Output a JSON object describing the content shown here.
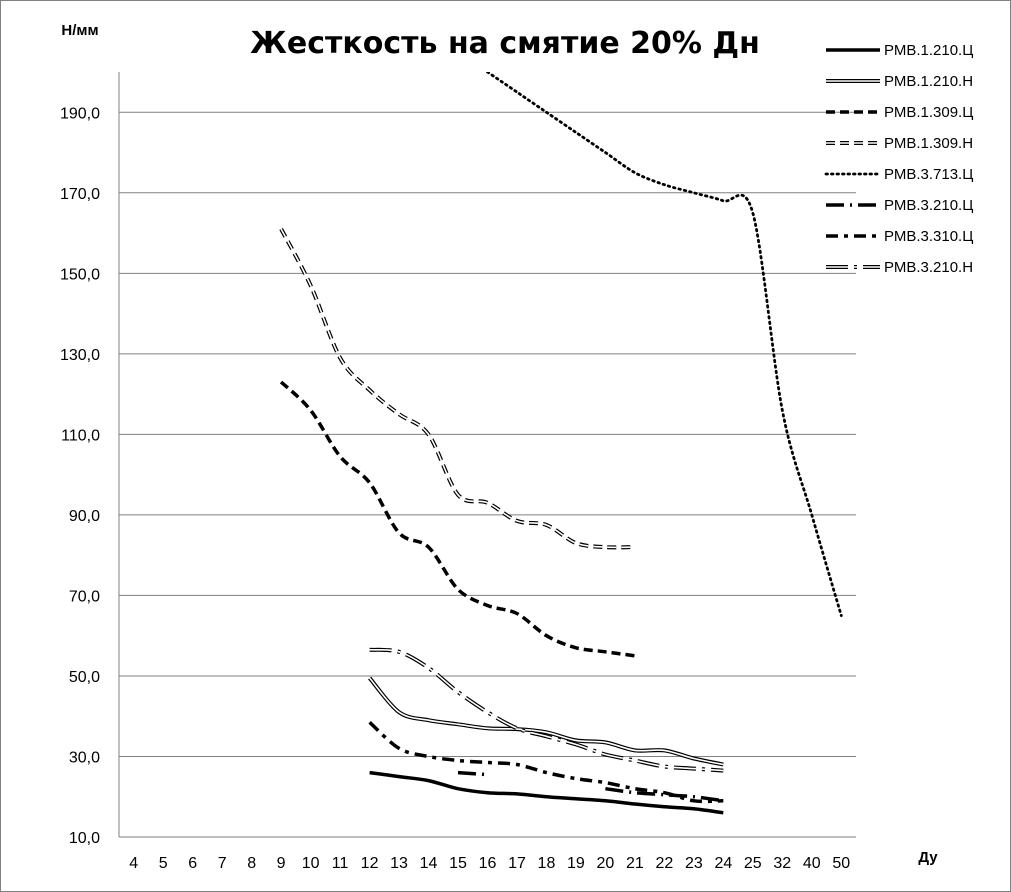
{
  "chart_data": {
    "type": "line",
    "title": "Жесткость на смятие 20% Дн",
    "ylabel": "Н/мм",
    "xlabel": "Ду",
    "categories": [
      "4",
      "5",
      "6",
      "7",
      "8",
      "9",
      "10",
      "11",
      "12",
      "13",
      "14",
      "15",
      "16",
      "17",
      "18",
      "19",
      "20",
      "21",
      "22",
      "23",
      "24",
      "25",
      "32",
      "40",
      "50"
    ],
    "ylim": [
      10,
      200
    ],
    "yticks": [
      "10,0",
      "30,0",
      "50,0",
      "70,0",
      "90,0",
      "110,0",
      "130,0",
      "150,0",
      "170,0",
      "190,0"
    ],
    "ytick_values": [
      10,
      30,
      50,
      70,
      90,
      110,
      130,
      150,
      170,
      190
    ],
    "grid": true,
    "legend_position": "top-right",
    "series": [
      {
        "name": "РМВ.1.210.Ц",
        "style": "solid",
        "values": [
          null,
          null,
          null,
          null,
          null,
          null,
          null,
          null,
          26,
          25,
          24,
          22,
          21,
          20.7,
          20,
          19.5,
          19,
          18.2,
          17.5,
          17,
          16,
          null,
          null,
          null,
          null
        ]
      },
      {
        "name": "РМВ.1.210.Н",
        "style": "hollow",
        "values": [
          null,
          null,
          null,
          null,
          null,
          null,
          null,
          null,
          49.5,
          41,
          39,
          38,
          37,
          36.8,
          36,
          34,
          33.5,
          31.5,
          31.5,
          29.5,
          28,
          null,
          null,
          null,
          null
        ]
      },
      {
        "name": "РМВ.1.309.Ц",
        "style": "dash",
        "values": [
          null,
          null,
          null,
          null,
          null,
          123,
          116,
          104.5,
          98,
          85.5,
          82,
          71.5,
          67.5,
          65.5,
          60,
          57,
          56,
          55,
          null,
          null,
          null,
          null,
          null,
          null,
          null
        ]
      },
      {
        "name": "РМВ.1.309.Н",
        "style": "hollow-dash",
        "values": [
          null,
          null,
          null,
          null,
          null,
          161,
          147,
          129,
          121,
          115,
          110,
          95,
          93,
          88.5,
          87.5,
          83,
          82,
          82,
          null,
          null,
          null,
          null,
          null,
          null,
          null
        ]
      },
      {
        "name": "РМВ.3.713.Ц",
        "style": "dot",
        "values": [
          null,
          null,
          null,
          null,
          null,
          null,
          null,
          null,
          null,
          null,
          null,
          null,
          200,
          195,
          190,
          185,
          180,
          175,
          172,
          170,
          168,
          165,
          116,
          90,
          65
        ]
      },
      {
        "name": "РМВ.3.210.Ц",
        "style": "longdash-dot",
        "values": [
          null,
          null,
          null,
          null,
          null,
          null,
          null,
          null,
          null,
          null,
          null,
          26,
          25.5,
          null,
          22,
          null,
          22,
          21,
          20.5,
          20,
          19,
          null,
          null,
          null,
          null
        ]
      },
      {
        "name": "РМВ.3.310.Ц",
        "style": "dash-dot",
        "values": [
          null,
          null,
          null,
          null,
          null,
          null,
          null,
          null,
          38.5,
          32,
          30,
          29,
          28.5,
          28,
          26,
          24.5,
          23.5,
          22,
          21,
          19,
          19,
          null,
          null,
          null,
          null
        ]
      },
      {
        "name": "РМВ.3.210.Н",
        "style": "hollow-dash-dot",
        "values": [
          null,
          null,
          null,
          null,
          null,
          null,
          null,
          null,
          56.5,
          56,
          52,
          46,
          41,
          37,
          35,
          33,
          30.5,
          29,
          27.5,
          27,
          26.5,
          null,
          null,
          null,
          null
        ]
      }
    ]
  }
}
